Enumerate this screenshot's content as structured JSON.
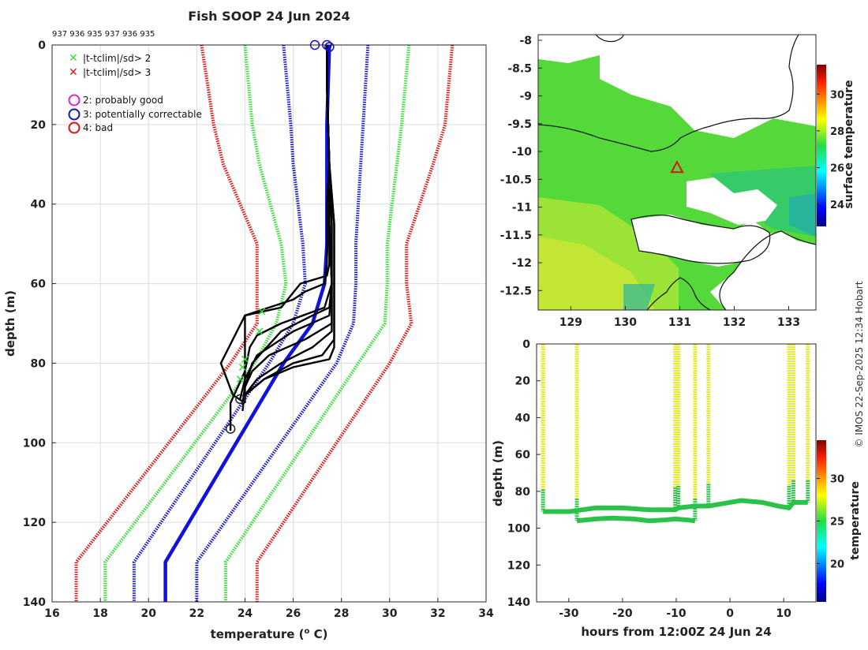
{
  "figure": {
    "title": "Fish SOOP 24 Jun 2024",
    "ids_label": "937 936 935 937 936 935",
    "credit": "© IMOS 22-Sep-2025 12:34 Hobart"
  },
  "chart_data": [
    {
      "type": "line",
      "name": "profile",
      "xlabel": "temperature (o C)",
      "xlabel_main": "temperature (",
      "xlabel_sup": "o",
      "xlabel_end": " C)",
      "ylabel": "depth (m)",
      "xlim": [
        16,
        34
      ],
      "ylim": [
        140,
        0
      ],
      "xticks": [
        16,
        18,
        20,
        22,
        24,
        26,
        28,
        30,
        32,
        34
      ],
      "yticks": [
        0,
        20,
        40,
        60,
        80,
        100,
        120,
        140
      ],
      "grid": true,
      "legend": [
        {
          "label": "|t-tclim|/sd> 2",
          "symbol": "x",
          "color": "#33dd33"
        },
        {
          "label": "|t-tclim|/sd> 3",
          "symbol": "x",
          "color": "#dd1111"
        },
        {
          "label": "2: probably good",
          "symbol": "o",
          "color": "#dd22dd"
        },
        {
          "label": "3: potentially correctable",
          "symbol": "o",
          "color": "#1111cc"
        },
        {
          "label": "4: bad",
          "symbol": "o",
          "color": "#dd1111"
        }
      ],
      "climatology": {
        "depth": [
          0,
          20,
          30,
          50,
          60,
          70,
          80,
          130,
          140
        ],
        "mean": [
          27.5,
          27.4,
          27.4,
          27.4,
          27.3,
          26.8,
          25.6,
          20.7,
          20.7
        ],
        "lines": [
          {
            "name": "mean-3sd",
            "color": "#dd1111",
            "dash": true,
            "values": [
              22.2,
              22.7,
              23.1,
              24.5,
              24.5,
              24.5,
              23.4,
              17.0,
              17.0
            ]
          },
          {
            "name": "mean-2sd",
            "color": "#33dd33",
            "dash": true,
            "values": [
              24.0,
              24.3,
              24.6,
              25.5,
              25.7,
              25.3,
              24.4,
              18.2,
              18.2
            ]
          },
          {
            "name": "mean-1sd",
            "color": "#1111cc",
            "dash": true,
            "values": [
              25.6,
              25.9,
              26.0,
              26.4,
              26.5,
              26.0,
              25.0,
              19.4,
              19.4
            ]
          },
          {
            "name": "mean",
            "color": "#1111dd",
            "dash": false,
            "values": [
              27.5,
              27.4,
              27.4,
              27.4,
              27.3,
              26.8,
              25.6,
              20.7,
              20.7
            ]
          },
          {
            "name": "mean+1sd",
            "color": "#1111cc",
            "dash": true,
            "values": [
              29.1,
              28.9,
              28.8,
              28.6,
              28.6,
              28.5,
              27.8,
              22.0,
              22.0
            ]
          },
          {
            "name": "mean+2sd",
            "color": "#33dd33",
            "dash": true,
            "values": [
              30.8,
              30.5,
              30.3,
              29.9,
              29.9,
              29.8,
              28.7,
              23.2,
              23.2
            ]
          },
          {
            "name": "mean+3sd",
            "color": "#dd1111",
            "dash": true,
            "values": [
              32.6,
              32.3,
              31.8,
              30.7,
              30.7,
              30.9,
              30.0,
              24.5,
              24.5
            ]
          }
        ]
      },
      "profiles": [
        {
          "depth": [
            0,
            10,
            30,
            40,
            55,
            58,
            60,
            66,
            68,
            75,
            80,
            85,
            89
          ],
          "temp": [
            27.4,
            27.4,
            27.5,
            27.5,
            27.5,
            27.4,
            26.3,
            25.5,
            24.0,
            24.0,
            24.0,
            24.0,
            24.0
          ]
        },
        {
          "depth": [
            0,
            10,
            30,
            40,
            55,
            60,
            62,
            64,
            68,
            80,
            88,
            90
          ],
          "temp": [
            27.4,
            27.4,
            27.5,
            27.4,
            27.4,
            27.3,
            26.5,
            26.0,
            24.0,
            23.0,
            23.5,
            24.0
          ]
        },
        {
          "depth": [
            0,
            10,
            30,
            45,
            60,
            66,
            70,
            73,
            76,
            82,
            90,
            97
          ],
          "temp": [
            27.4,
            27.4,
            27.5,
            27.5,
            27.6,
            27.3,
            25.5,
            24.5,
            24.2,
            24.0,
            23.4,
            23.4
          ]
        },
        {
          "depth": [
            0,
            10,
            30,
            45,
            60,
            68,
            72,
            78,
            84,
            89
          ],
          "temp": [
            27.4,
            27.4,
            27.5,
            27.5,
            27.6,
            27.5,
            26.0,
            24.5,
            24.0,
            23.8
          ]
        },
        {
          "depth": [
            0,
            10,
            30,
            45,
            60,
            70,
            74,
            78,
            82,
            86,
            90
          ],
          "temp": [
            27.4,
            27.4,
            27.5,
            27.6,
            27.6,
            27.6,
            26.5,
            25.0,
            24.3,
            24.0,
            23.9
          ]
        },
        {
          "depth": [
            0,
            10,
            30,
            45,
            60,
            72,
            76,
            80,
            84,
            88,
            90
          ],
          "temp": [
            27.4,
            27.4,
            27.5,
            27.6,
            27.6,
            27.6,
            26.8,
            25.5,
            24.5,
            24.0,
            24.0
          ]
        },
        {
          "depth": [
            0,
            10,
            30,
            45,
            60,
            74,
            78,
            80,
            84,
            88
          ],
          "temp": [
            27.4,
            27.4,
            27.5,
            27.7,
            27.7,
            27.7,
            27.2,
            26.0,
            24.8,
            24.0
          ]
        },
        {
          "depth": [
            0,
            10,
            30,
            45,
            60,
            76,
            79,
            81,
            84,
            88,
            90
          ],
          "temp": [
            27.4,
            27.4,
            27.5,
            27.7,
            27.7,
            27.7,
            27.5,
            26.0,
            24.8,
            24.0,
            23.9
          ]
        },
        {
          "depth": [
            0,
            10,
            30,
            45,
            60,
            66,
            68,
            72,
            80,
            86,
            92
          ],
          "temp": [
            27.4,
            27.4,
            27.5,
            27.5,
            27.6,
            27.5,
            26.8,
            25.5,
            24.3,
            24.0,
            23.9
          ]
        }
      ],
      "flag_markers": [
        {
          "temp": 26.9,
          "depth": 0,
          "color": "#1111cc"
        },
        {
          "temp": 27.4,
          "depth": 0,
          "color": "#1111cc"
        },
        {
          "temp": 27.5,
          "depth": 0.5,
          "color": "#1111cc"
        },
        {
          "temp": 23.8,
          "depth": 89,
          "color": "#222222"
        },
        {
          "temp": 23.4,
          "depth": 96.5,
          "color": "#222222"
        }
      ],
      "outlier_markers": [
        {
          "temp": 24.7,
          "depth": 67,
          "color": "#33dd33"
        },
        {
          "temp": 24.6,
          "depth": 72,
          "color": "#33dd33"
        },
        {
          "temp": 24.0,
          "depth": 79,
          "color": "#33dd33"
        },
        {
          "temp": 23.9,
          "depth": 81,
          "color": "#33dd33"
        },
        {
          "temp": 23.8,
          "depth": 84,
          "color": "#33dd33"
        }
      ]
    },
    {
      "type": "heatmap",
      "name": "sst-map",
      "xlim": [
        128.4,
        133.5
      ],
      "ylim": [
        -12.85,
        -7.9
      ],
      "xticks": [
        129,
        130,
        131,
        132,
        133
      ],
      "yticks": [
        -8,
        -8.5,
        -9,
        -9.5,
        -10,
        -10.5,
        -11,
        -11.5,
        -12,
        -12.5
      ],
      "marker": {
        "lon": 130.95,
        "lat": -10.3,
        "symbol": "triangle",
        "color": "#dd1111"
      },
      "colorbar": {
        "label": "surface temperature",
        "range": [
          22.8,
          31.6
        ],
        "ticks": [
          24,
          26,
          28,
          30
        ]
      }
    },
    {
      "type": "scatter",
      "name": "depth-time",
      "xlabel": "hours from 12:00Z 24 Jun 24",
      "ylabel": "depth (m)",
      "xlim": [
        -36,
        16
      ],
      "ylim": [
        140,
        0
      ],
      "xticks": [
        -30,
        -20,
        -10,
        0,
        10
      ],
      "yticks": [
        0,
        20,
        40,
        60,
        80,
        100,
        120,
        140
      ],
      "casts": [
        {
          "hour": -34.8,
          "bottom": 91
        },
        {
          "hour": -28.5,
          "bottom": 96
        },
        {
          "hour": -10.2,
          "bottom": 90
        },
        {
          "hour": -9.6,
          "bottom": 89
        },
        {
          "hour": -6.5,
          "bottom": 96
        },
        {
          "hour": -4.0,
          "bottom": 88
        },
        {
          "hour": 11.0,
          "bottom": 89
        },
        {
          "hour": 11.8,
          "bottom": 86
        },
        {
          "hour": 14.5,
          "bottom": 86
        }
      ],
      "upper_bottom": {
        "hours": [
          -34.8,
          -30,
          -25,
          -20,
          -15,
          -10.2,
          -9.6,
          -6.5,
          -4.0,
          -2,
          2,
          6,
          9,
          11.0,
          11.8,
          14.5
        ],
        "depths": [
          91,
          91,
          89,
          89,
          90,
          90,
          89,
          88,
          88,
          87,
          85,
          86,
          88,
          89,
          86,
          86
        ]
      },
      "lower_bottom": {
        "hours": [
          -28.5,
          -25,
          -22,
          -18,
          -15,
          -12,
          -10.2,
          -8,
          -6.5
        ],
        "depths": [
          96,
          95,
          94.5,
          95,
          96,
          95.5,
          95,
          95.5,
          96
        ]
      },
      "colorbar": {
        "label": "temperature",
        "range": [
          15.5,
          34.5
        ],
        "ticks": [
          20,
          25,
          30
        ]
      }
    }
  ]
}
